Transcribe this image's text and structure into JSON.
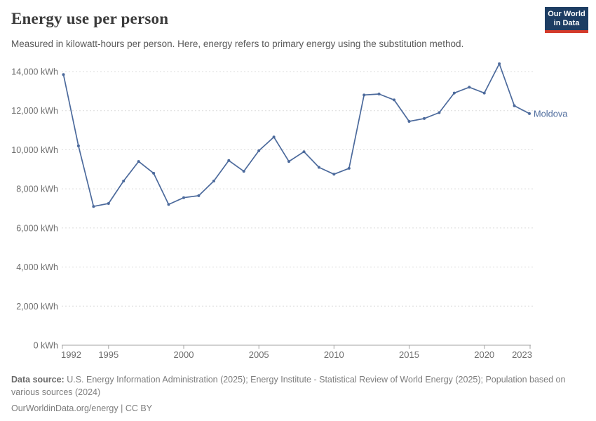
{
  "header": {
    "title": "Energy use per person",
    "subtitle": "Measured in kilowatt-hours per person. Here, energy refers to primary energy using the substitution method."
  },
  "logo": {
    "line1": "Our World",
    "line2": "in Data",
    "bg_color": "#1d3d63",
    "accent_color": "#d43b2b"
  },
  "chart_data": {
    "type": "line",
    "title": "Energy use per person",
    "unit": "kWh",
    "x": [
      1992,
      1993,
      1994,
      1995,
      1996,
      1997,
      1998,
      1999,
      2000,
      2001,
      2002,
      2003,
      2004,
      2005,
      2006,
      2007,
      2008,
      2009,
      2010,
      2011,
      2012,
      2013,
      2014,
      2015,
      2016,
      2017,
      2018,
      2019,
      2020,
      2021,
      2022,
      2023
    ],
    "series": [
      {
        "name": "Moldova",
        "color": "#4C6A9C",
        "values": [
          13850,
          10200,
          7100,
          7250,
          8400,
          9400,
          8800,
          7200,
          7550,
          7650,
          8400,
          9450,
          8900,
          9950,
          10650,
          9400,
          9900,
          9100,
          8750,
          9050,
          12800,
          12850,
          12550,
          11450,
          11600,
          11900,
          12900,
          13200,
          12900,
          14400,
          12250,
          11850
        ]
      }
    ],
    "xlabel": "",
    "ylabel": "",
    "ylim": [
      0,
      14000
    ],
    "xlim": [
      1992,
      2023
    ],
    "y_ticks": [
      0,
      2000,
      4000,
      6000,
      8000,
      10000,
      12000,
      14000
    ],
    "x_ticks": [
      1992,
      1995,
      2000,
      2005,
      2010,
      2015,
      2020,
      2023
    ],
    "grid": "horizontal-dashed",
    "legend_position": "end-of-line-label"
  },
  "colors": {
    "line": "#4C6A9C",
    "grid": "#dcdcdc",
    "axis": "#a3a3a3",
    "tick_label": "#6e6e6e"
  },
  "footer": {
    "data_source_label": "Data source:",
    "data_source_text": "U.S. Energy Information Administration (2025); Energy Institute - Statistical Review of World Energy (2025); Population based on various sources (2024)",
    "link": "OurWorldinData.org/energy",
    "separator": "|",
    "license": "CC BY"
  }
}
